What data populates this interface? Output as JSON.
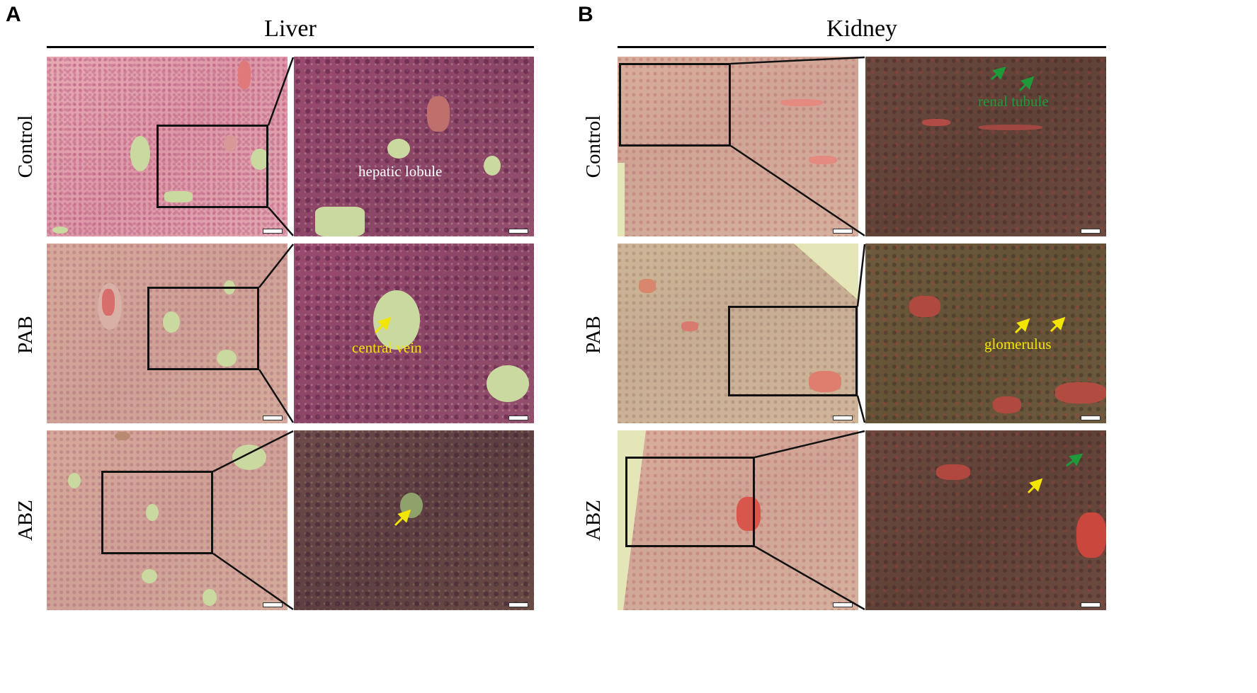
{
  "panels": {
    "a": {
      "letter": "A",
      "title": "Liver"
    },
    "b": {
      "letter": "B",
      "title": "Kidney"
    }
  },
  "rows": [
    "Control",
    "PAB",
    "ABZ"
  ],
  "annotations": {
    "hepatic_lobule": "hepatic lobule",
    "central_vein": "central vein",
    "renal_tubule": "renal tubule",
    "glomerulus": "glomerulus"
  },
  "colors": {
    "yellow_arrow": "#f2e600",
    "green_arrow": "#1f9a3a",
    "white_label": "#ffffff",
    "frame": "#111111"
  }
}
